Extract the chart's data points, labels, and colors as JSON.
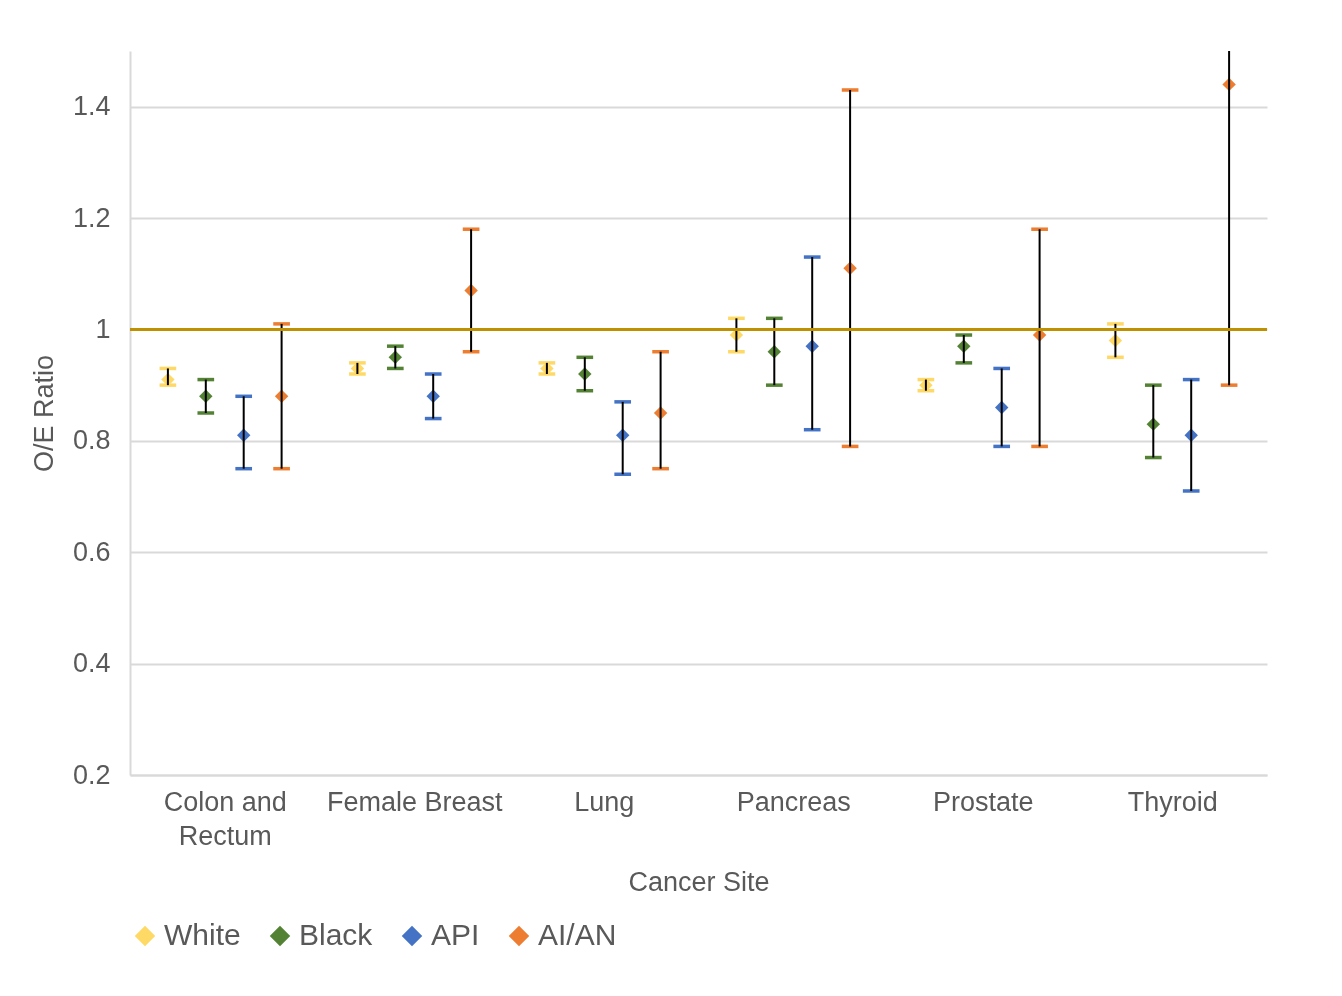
{
  "chart_data": {
    "type": "scatter",
    "xlabel": "Cancer Site",
    "ylabel": "O/E Ratio",
    "categories": [
      "Colon and Rectum",
      "Female Breast",
      "Lung",
      "Pancreas",
      "Prostate",
      "Thyroid"
    ],
    "series": [
      {
        "name": "White",
        "color": "#ffd966",
        "values": [
          0.91,
          0.93,
          0.93,
          0.99,
          0.9,
          0.98
        ],
        "errors": [
          [
            0.9,
            0.93
          ],
          [
            0.92,
            0.94
          ],
          [
            0.92,
            0.94
          ],
          [
            0.96,
            1.02
          ],
          [
            0.89,
            0.91
          ],
          [
            0.95,
            1.01
          ]
        ]
      },
      {
        "name": "Black",
        "color": "#548235",
        "values": [
          0.88,
          0.95,
          0.92,
          0.96,
          0.97,
          0.83
        ],
        "errors": [
          [
            0.85,
            0.91
          ],
          [
            0.93,
            0.97
          ],
          [
            0.89,
            0.95
          ],
          [
            0.9,
            1.02
          ],
          [
            0.94,
            0.99
          ],
          [
            0.77,
            0.9
          ]
        ]
      },
      {
        "name": "API",
        "color": "#4472c4",
        "values": [
          0.81,
          0.88,
          0.81,
          0.97,
          0.86,
          0.81
        ],
        "errors": [
          [
            0.75,
            0.88
          ],
          [
            0.84,
            0.92
          ],
          [
            0.74,
            0.87
          ],
          [
            0.82,
            1.13
          ],
          [
            0.79,
            0.93
          ],
          [
            0.71,
            0.91
          ]
        ]
      },
      {
        "name": "AI/AN",
        "color": "#ed7d31",
        "values": [
          0.88,
          1.07,
          0.85,
          1.11,
          0.99,
          1.44
        ],
        "errors": [
          [
            0.75,
            1.01
          ],
          [
            0.96,
            1.18
          ],
          [
            0.75,
            0.96
          ],
          [
            0.79,
            1.43
          ],
          [
            0.79,
            1.18
          ],
          [
            0.9,
            1.5
          ]
        ]
      }
    ],
    "ylim": [
      0.2,
      1.5
    ],
    "yticks": [
      0.2,
      0.4,
      0.6,
      0.8,
      1,
      1.2,
      1.4
    ],
    "ref_lines": [
      {
        "axis": "y",
        "value": 1,
        "color": "#bf9000"
      }
    ],
    "grid": "y",
    "legend": "bottom",
    "marker": "diamond"
  }
}
